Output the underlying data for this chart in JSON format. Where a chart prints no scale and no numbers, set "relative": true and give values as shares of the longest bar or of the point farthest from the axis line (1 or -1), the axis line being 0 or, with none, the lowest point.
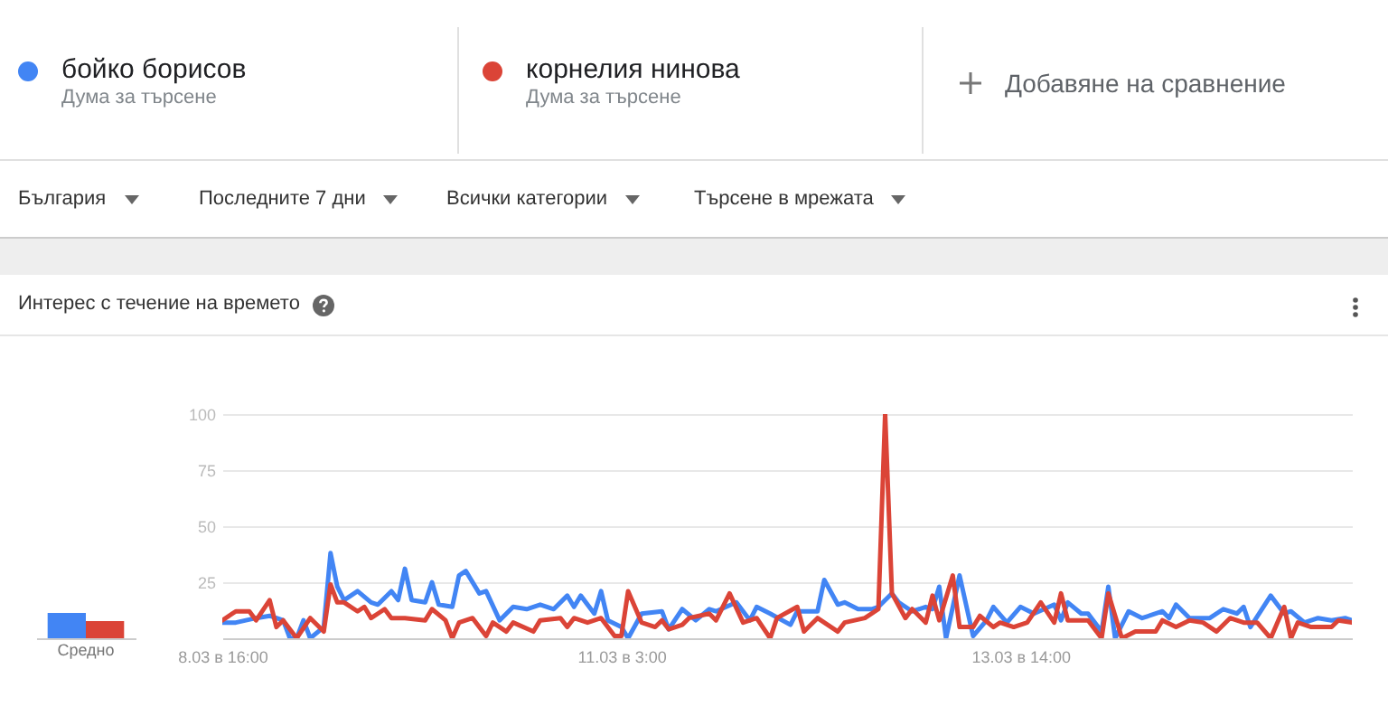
{
  "chart_data": [
    {
      "type": "bar",
      "relative": true,
      "categories": [
        "Средно"
      ],
      "series": [
        {
          "color": "#4285f4",
          "values": [
            1
          ]
        },
        {
          "color": "#db4437",
          "values": [
            0.68
          ]
        }
      ]
    },
    {
      "type": "line",
      "title": "Интерес с течение на времето",
      "annotations": [
        "Дума за търсене",
        "Дума за търсене",
        "Добавяне на сравнение",
        "България",
        "Последните 7 дни",
        "Всички категории",
        "Търсене в мрежата"
      ],
      "legend": "top",
      "grid": "y",
      "line_style": "solid",
      "xlim": [
        "--03-08T16:00",
        "--03-15T15:00"
      ],
      "xticks": [
        {
          "value": "--03-08T16:00",
          "label": "8.03 в 16:00"
        },
        {
          "value": "--03-11T03:00",
          "label": "11.03 в 3:00"
        },
        {
          "value": "--03-13T14:00",
          "label": "13.03 в 14:00"
        }
      ],
      "ylim": [
        0,
        100
      ],
      "yticks": [
        25,
        50,
        75,
        100
      ],
      "series": [
        {
          "name": "бойко борисов",
          "color": "#4285f4",
          "x": [
            "--03-08T16:00",
            "--03-08T18:00",
            "--03-08T21:00",
            "--03-08T23:00",
            "--03-09T01:00",
            "--03-09T02:00",
            "--03-09T03:00",
            "--03-09T04:00",
            "--03-09T05:00",
            "--03-09T07:00",
            "--03-09T08:00",
            "--03-09T09:00",
            "--03-09T10:00",
            "--03-09T12:00",
            "--03-09T14:00",
            "--03-09T15:00",
            "--03-09T17:00",
            "--03-09T18:00",
            "--03-09T19:00",
            "--03-09T20:00",
            "--03-09T22:00",
            "--03-09T23:00",
            "--03-10T00:00",
            "--03-10T02:00",
            "--03-10T03:00",
            "--03-10T04:00",
            "--03-10T06:00",
            "--03-10T07:00",
            "--03-10T09:00",
            "--03-10T11:00",
            "--03-10T13:00",
            "--03-10T15:00",
            "--03-10T17:00",
            "--03-10T19:00",
            "--03-10T20:00",
            "--03-10T21:00",
            "--03-10T23:00",
            "--03-11T00:00",
            "--03-11T01:00",
            "--03-11T03:00",
            "--03-11T04:00",
            "--03-11T06:00",
            "--03-11T09:00",
            "--03-11T10:00",
            "--03-11T12:00",
            "--03-11T14:00",
            "--03-11T16:00",
            "--03-11T17:00",
            "--03-11T20:00",
            "--03-11T22:00",
            "--03-11T23:00",
            "--03-12T01:00",
            "--03-12T04:00",
            "--03-12T05:00",
            "--03-12T08:00",
            "--03-12T09:00",
            "--03-12T11:00",
            "--03-12T12:00",
            "--03-12T14:00",
            "--03-12T16:00",
            "--03-12T17:00",
            "--03-12T19:00",
            "--03-12T20:00",
            "--03-12T22:00",
            "--03-13T00:00",
            "--03-13T01:00",
            "--03-13T02:00",
            "--03-13T03:00",
            "--03-13T05:00",
            "--03-13T07:00",
            "--03-13T09:00",
            "--03-13T10:00",
            "--03-13T12:00",
            "--03-13T14:00",
            "--03-13T16:00",
            "--03-13T19:00",
            "--03-13T20:00",
            "--03-13T21:00",
            "--03-13T23:00",
            "--03-14T00:00",
            "--03-14T02:00",
            "--03-14T03:00",
            "--03-14T04:00",
            "--03-14T06:00",
            "--03-14T08:00",
            "--03-14T11:00",
            "--03-14T12:00",
            "--03-14T13:00",
            "--03-14T15:00",
            "--03-14T18:00",
            "--03-14T20:00",
            "--03-14T22:00",
            "--03-14T23:00",
            "--03-15T00:00",
            "--03-15T03:00",
            "--03-15T05:00",
            "--03-15T06:00",
            "--03-15T08:00",
            "--03-15T10:00",
            "--03-15T12:00",
            "--03-15T14:00",
            "--03-15T15:00"
          ],
          "values": [
            7,
            7,
            9,
            10,
            8,
            0,
            0,
            8,
            0,
            5,
            38,
            23,
            17,
            21,
            16,
            15,
            21,
            17,
            31,
            17,
            16,
            25,
            15,
            14,
            28,
            30,
            20,
            21,
            8,
            14,
            13,
            15,
            13,
            19,
            14,
            19,
            11,
            21,
            8,
            5,
            0,
            11,
            12,
            4,
            13,
            8,
            13,
            12,
            16,
            8,
            14,
            11,
            6,
            12,
            12,
            26,
            15,
            16,
            13,
            13,
            14,
            20,
            16,
            12,
            14,
            13,
            23,
            0,
            28,
            1,
            8,
            14,
            7,
            14,
            11,
            15,
            8,
            16,
            11,
            11,
            3,
            23,
            0,
            12,
            9,
            12,
            9,
            15,
            9,
            9,
            13,
            11,
            14,
            5,
            19,
            11,
            12,
            7,
            9,
            8,
            9,
            8
          ]
        },
        {
          "name": "корнелия нинова",
          "color": "#db4437",
          "x": [
            "--03-08T16:00",
            "--03-08T18:00",
            "--03-08T20:00",
            "--03-08T21:00",
            "--03-08T23:00",
            "--03-09T00:00",
            "--03-09T01:00",
            "--03-09T03:00",
            "--03-09T05:00",
            "--03-09T07:00",
            "--03-09T08:00",
            "--03-09T09:00",
            "--03-09T10:00",
            "--03-09T12:00",
            "--03-09T13:00",
            "--03-09T14:00",
            "--03-09T15:00",
            "--03-09T16:00",
            "--03-09T17:00",
            "--03-09T19:00",
            "--03-09T22:00",
            "--03-09T23:00",
            "--03-10T01:00",
            "--03-10T02:00",
            "--03-10T03:00",
            "--03-10T05:00",
            "--03-10T07:00",
            "--03-10T08:00",
            "--03-10T10:00",
            "--03-10T11:00",
            "--03-10T14:00",
            "--03-10T15:00",
            "--03-10T18:00",
            "--03-10T19:00",
            "--03-10T20:00",
            "--03-10T22:00",
            "--03-11T00:00",
            "--03-11T02:00",
            "--03-11T03:00",
            "--03-11T04:00",
            "--03-11T06:00",
            "--03-11T08:00",
            "--03-11T09:00",
            "--03-11T10:00",
            "--03-11T12:00",
            "--03-11T13:00",
            "--03-11T16:00",
            "--03-11T17:00",
            "--03-11T19:00",
            "--03-11T21:00",
            "--03-11T23:00",
            "--03-12T01:00",
            "--03-12T02:00",
            "--03-12T05:00",
            "--03-12T06:00",
            "--03-12T08:00",
            "--03-12T11:00",
            "--03-12T12:00",
            "--03-12T15:00",
            "--03-12T17:00",
            "--03-12T18:00",
            "--03-12T19:00",
            "--03-12T21:00",
            "--03-12T22:00",
            "--03-13T00:00",
            "--03-13T01:00",
            "--03-13T02:00",
            "--03-13T04:00",
            "--03-13T05:00",
            "--03-13T07:00",
            "--03-13T08:00",
            "--03-13T10:00",
            "--03-13T11:00",
            "--03-13T13:00",
            "--03-13T15:00",
            "--03-13T17:00",
            "--03-13T19:00",
            "--03-13T20:00",
            "--03-13T21:00",
            "--03-14T00:00",
            "--03-14T02:00",
            "--03-14T03:00",
            "--03-14T05:00",
            "--03-14T07:00",
            "--03-14T10:00",
            "--03-14T11:00",
            "--03-14T13:00",
            "--03-14T15:00",
            "--03-14T17:00",
            "--03-14T19:00",
            "--03-14T21:00",
            "--03-14T23:00",
            "--03-15T01:00",
            "--03-15T03:00",
            "--03-15T05:00",
            "--03-15T06:00",
            "--03-15T07:00",
            "--03-15T09:00",
            "--03-15T12:00",
            "--03-15T13:00",
            "--03-15T15:00"
          ],
          "values": [
            8,
            12,
            12,
            8,
            17,
            5,
            8,
            0,
            9,
            3,
            24,
            16,
            16,
            12,
            14,
            9,
            11,
            13,
            9,
            9,
            8,
            13,
            8,
            0,
            7,
            9,
            1,
            7,
            3,
            7,
            3,
            8,
            9,
            5,
            9,
            7,
            9,
            1,
            1,
            21,
            7,
            5,
            8,
            4,
            6,
            9,
            11,
            8,
            20,
            7,
            9,
            0,
            9,
            14,
            3,
            9,
            3,
            7,
            9,
            13,
            100,
            20,
            9,
            13,
            7,
            19,
            8,
            28,
            5,
            5,
            10,
            5,
            7,
            5,
            7,
            16,
            7,
            20,
            8,
            8,
            0,
            20,
            0,
            3,
            3,
            8,
            5,
            8,
            7,
            3,
            9,
            7,
            7,
            0,
            14,
            0,
            7,
            5,
            5,
            8,
            7
          ]
        }
      ]
    }
  ]
}
